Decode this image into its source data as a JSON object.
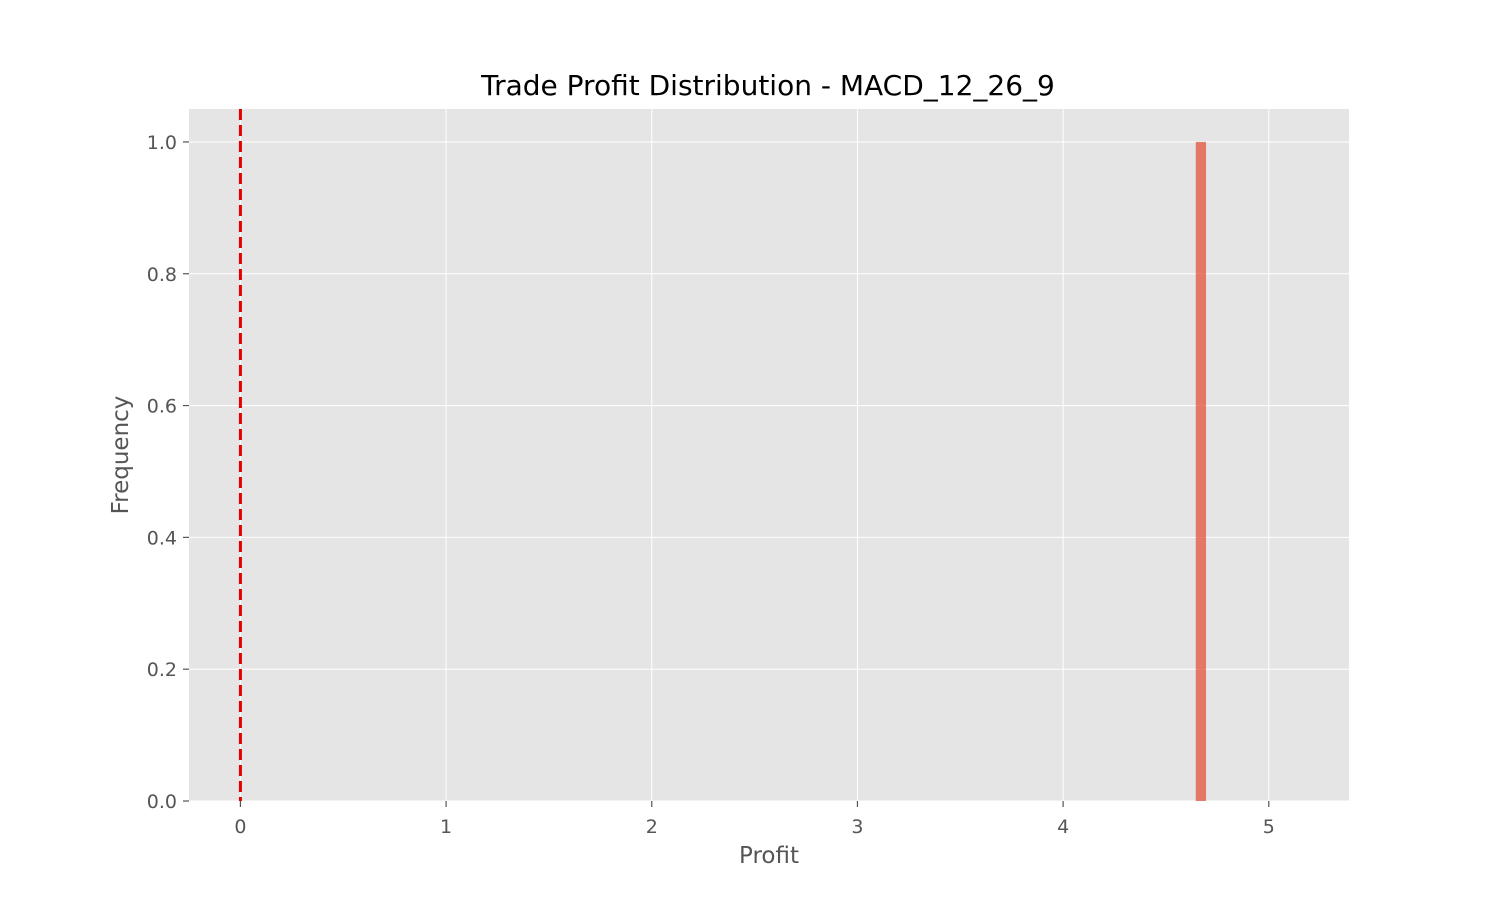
{
  "chart_data": {
    "type": "bar",
    "title": "Trade Profit Distribution - MACD_12_26_9",
    "xlabel": "Profit",
    "ylabel": "Frequency",
    "xlim": [
      -0.25,
      5.39
    ],
    "ylim": [
      0,
      1.05
    ],
    "xticks": [
      0,
      1,
      2,
      3,
      4,
      5
    ],
    "yticks": [
      0.0,
      0.2,
      0.4,
      0.6,
      0.8,
      1.0
    ],
    "xtick_labels": [
      "0",
      "1",
      "2",
      "3",
      "4",
      "5"
    ],
    "ytick_labels": [
      "0.0",
      "0.2",
      "0.4",
      "0.6",
      "0.8",
      "1.0"
    ],
    "bins": [
      {
        "x0": 4.645,
        "x1": 4.695,
        "value": 1
      }
    ],
    "reference_line": {
      "x": 0,
      "style": "dashed",
      "color": "#e30000"
    },
    "grid": true,
    "colors": {
      "background": "#e5e5e5",
      "bar": "#e24a33",
      "grid": "#ffffff"
    }
  }
}
